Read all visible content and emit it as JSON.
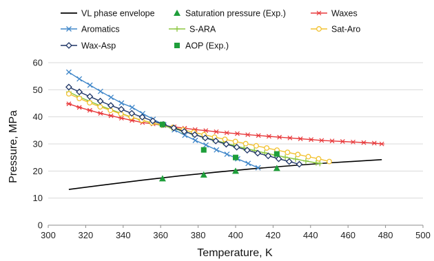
{
  "chart_data": {
    "type": "line",
    "title": "",
    "xlabel": "Temperature, K",
    "ylabel": "Pressure, MPa",
    "xlim": [
      300,
      500
    ],
    "ylim": [
      0,
      60
    ],
    "xticks": [
      300,
      320,
      340,
      360,
      380,
      400,
      420,
      440,
      460,
      480,
      500
    ],
    "yticks": [
      0,
      10,
      20,
      30,
      40,
      50,
      60
    ],
    "grid": "horizontal",
    "legend": "top",
    "series": [
      {
        "name": "VL phase envelope",
        "color": "#000000",
        "marker": "none",
        "x": [
          311,
          330,
          350,
          370,
          390,
          410,
          430,
          450,
          478
        ],
        "y": [
          13.2,
          14.9,
          16.6,
          18.2,
          19.6,
          20.9,
          22.0,
          23.0,
          24.2
        ]
      },
      {
        "name": "Saturation pressure (Exp.)",
        "color": "#1e9e3a",
        "marker": "triangle",
        "x": [
          361,
          383,
          400,
          422
        ],
        "y": [
          17.2,
          18.6,
          20.0,
          21.0
        ]
      },
      {
        "name": "Waxes",
        "color": "#e8393b",
        "marker": "star",
        "x": [
          311,
          316.6,
          322.2,
          327.9,
          333.5,
          339.1,
          344.7,
          350.3,
          356.0,
          361.6,
          367.2,
          372.8,
          378.4,
          384.1,
          389.7,
          395.3,
          400.9,
          406.5,
          412.2,
          417.8,
          423.4,
          429.0,
          434.6,
          440.3,
          445.9,
          451.5,
          457.1,
          462.7,
          468.4,
          474.0,
          478
        ],
        "y": [
          44.8,
          43.5,
          42.4,
          41.3,
          40.4,
          39.5,
          38.7,
          37.9,
          37.4,
          36.8,
          36.3,
          35.8,
          35.3,
          34.9,
          34.5,
          34.1,
          33.8,
          33.4,
          33.1,
          32.8,
          32.5,
          32.2,
          31.9,
          31.6,
          31.3,
          31.1,
          30.9,
          30.7,
          30.5,
          30.3,
          30.0
        ]
      },
      {
        "name": "Aromatics",
        "color": "#3f86c9",
        "marker": "x",
        "x": [
          311,
          316.6,
          322.3,
          327.9,
          333.5,
          339.1,
          344.8,
          350.4,
          356.0,
          361.7,
          367.3,
          372.9,
          378.5,
          384.2,
          389.8,
          395.4,
          401.1,
          406.7,
          412
        ],
        "y": [
          56.5,
          54.0,
          51.7,
          49.4,
          47.2,
          45.1,
          43.5,
          41.2,
          39.1,
          37.1,
          35.2,
          33.2,
          31.3,
          29.6,
          27.8,
          26.2,
          24.5,
          22.8,
          21.2
        ]
      },
      {
        "name": "S-ARA",
        "color": "#8cc63f",
        "marker": "plus",
        "x": [
          311,
          316.5,
          322.0,
          327.5,
          333.0,
          338.5,
          344.0,
          349.5,
          355.0,
          360.5,
          366.0,
          371.5,
          377.0,
          382.5,
          388.0,
          393.5,
          399.0,
          404.5,
          410.0,
          415.5,
          421.0,
          426.5,
          432.0,
          437.5,
          443,
          445
        ],
        "y": [
          49.2,
          47.4,
          45.8,
          44.2,
          42.8,
          41.4,
          40.0,
          38.8,
          37.8,
          36.9,
          35.9,
          34.8,
          33.7,
          32.6,
          31.6,
          30.5,
          29.5,
          28.5,
          27.6,
          26.7,
          25.9,
          25.1,
          24.4,
          23.7,
          23.0,
          22.8
        ]
      },
      {
        "name": "Sat-Aro",
        "color": "#f2c12e",
        "marker": "circle",
        "x": [
          311,
          316.6,
          322.1,
          327.7,
          333.2,
          338.8,
          344.3,
          349.9,
          355.4,
          361.0,
          366.6,
          372.1,
          377.7,
          383.2,
          388.8,
          394.3,
          399.9,
          405.4,
          411.0,
          416.6,
          422.1,
          427.7,
          433.2,
          438.8,
          444.3,
          450
        ],
        "y": [
          48.5,
          46.8,
          45.2,
          43.7,
          42.4,
          41.1,
          39.9,
          38.8,
          37.8,
          37.0,
          36.1,
          35.2,
          34.3,
          33.4,
          32.5,
          31.7,
          30.9,
          30.1,
          29.3,
          28.5,
          27.7,
          26.9,
          26.1,
          25.3,
          24.5,
          23.5
        ]
      },
      {
        "name": "Wax-Asp",
        "color": "#1f3566",
        "marker": "diamond",
        "x": [
          311,
          316.6,
          322.2,
          327.8,
          333.4,
          339.0,
          344.6,
          350.2,
          355.8,
          361.4,
          367.0,
          372.6,
          378.2,
          383.8,
          389.4,
          395.0,
          400.6,
          406.2,
          411.8,
          417.4,
          423.0,
          428.6,
          434
        ],
        "y": [
          51.0,
          49.2,
          47.5,
          45.8,
          44.2,
          42.8,
          41.3,
          39.9,
          38.5,
          37.2,
          35.9,
          34.6,
          33.4,
          32.2,
          31.1,
          29.9,
          28.8,
          27.7,
          26.6,
          25.6,
          24.5,
          23.5,
          22.5
        ]
      },
      {
        "name": "AOP (Exp.)",
        "color": "#1e9e3a",
        "marker": "square",
        "x": [
          361,
          383,
          400,
          422
        ],
        "y": [
          37.2,
          27.8,
          25.0,
          26.3
        ]
      }
    ]
  }
}
